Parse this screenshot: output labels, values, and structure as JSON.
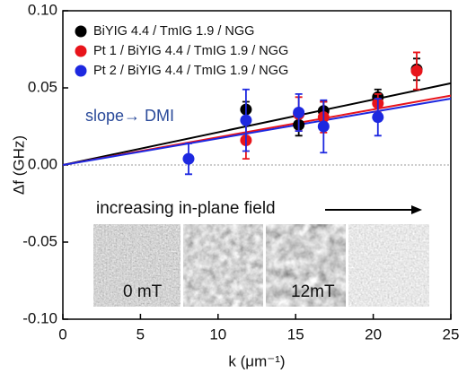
{
  "chart_data": {
    "type": "scatter",
    "xlabel": "k (μm⁻¹)",
    "ylabel": "Δf (GHz)",
    "xlim": [
      0,
      25
    ],
    "ylim": [
      -0.1,
      0.1
    ],
    "xticks": [
      0,
      5,
      10,
      15,
      20,
      25
    ],
    "yticks": [
      {
        "value": -0.1,
        "label": "-0.10"
      },
      {
        "value": -0.05,
        "label": "-0.05"
      },
      {
        "value": 0,
        "label": "0.00"
      },
      {
        "value": 0.05,
        "label": "0.05"
      },
      {
        "value": 0.1,
        "label": "0.10"
      }
    ],
    "legend": "upper left",
    "series": [
      {
        "name": "BiYIG 4.4 / TmIG 1.9 / NGG",
        "color": "#000000",
        "x": [
          11.8,
          15.2,
          16.8,
          20.3,
          22.8
        ],
        "values": [
          0.036,
          0.026,
          0.035,
          0.044,
          0.062
        ],
        "errors": [
          0.005,
          0.007,
          0.006,
          0.005,
          0.007
        ],
        "fit": {
          "x": [
            0,
            25
          ],
          "values": [
            0,
            0.053
          ]
        }
      },
      {
        "name": "Pt 1 / BiYIG 4.4 / TmIG 1.9 / NGG",
        "color": "#e8141b",
        "x": [
          11.8,
          15.2,
          16.8,
          20.3,
          22.8
        ],
        "values": [
          0.016,
          0.033,
          0.031,
          0.04,
          0.061
        ],
        "errors": [
          0.012,
          0.011,
          0.01,
          0.006,
          0.012
        ],
        "fit": {
          "x": [
            0,
            25
          ],
          "values": [
            0,
            0.045
          ]
        }
      },
      {
        "name": "Pt 2 / BiYIG 4.4 / TmIG 1.9 / NGG",
        "color": "#1d28e0",
        "x": [
          8.1,
          11.8,
          15.2,
          16.8,
          20.3
        ],
        "values": [
          0.004,
          0.029,
          0.034,
          0.025,
          0.031
        ],
        "errors": [
          0.01,
          0.02,
          0.012,
          0.017,
          0.012
        ],
        "fit": {
          "x": [
            0,
            25
          ],
          "values": [
            0,
            0.043
          ]
        }
      }
    ],
    "annotations": [
      "slope→ DMI",
      "increasing in-plane field",
      "0 mT",
      "12mT"
    ]
  }
}
